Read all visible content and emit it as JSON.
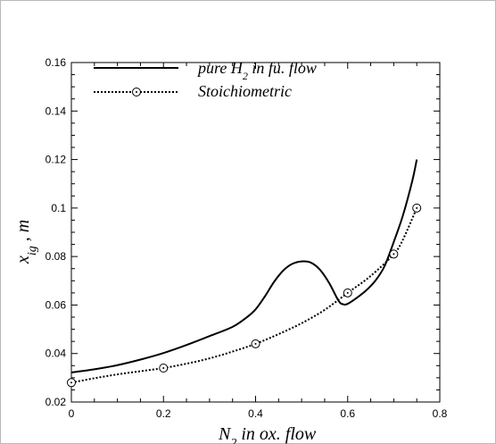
{
  "chart_data": {
    "type": "line",
    "xlabel": "N",
    "xlabel_sub": "2",
    "xlabel_rest": " in ox. flow",
    "ylabel": "x",
    "ylabel_sub": "ig",
    "ylabel_rest": " , m",
    "xlim": [
      0,
      0.8
    ],
    "ylim": [
      0.02,
      0.16
    ],
    "xticks": [
      "0",
      "0.2",
      "0.4",
      "0.6",
      "0.8"
    ],
    "yticks": [
      "0.02",
      "0.04",
      "0.06",
      "0.08",
      "0.1",
      "0.12",
      "0.14",
      "0.16"
    ],
    "legend_position": "top-left",
    "series": [
      {
        "name": "pure H",
        "name_sub": "2",
        "name_rest": " in fu. flow",
        "style": "solid",
        "color": "#000000",
        "x": [
          0,
          0.05,
          0.1,
          0.15,
          0.2,
          0.25,
          0.3,
          0.35,
          0.38,
          0.4,
          0.42,
          0.44,
          0.46,
          0.48,
          0.5,
          0.52,
          0.54,
          0.56,
          0.58,
          0.59,
          0.6,
          0.62,
          0.64,
          0.66,
          0.68,
          0.7,
          0.72,
          0.74,
          0.75
        ],
        "y": [
          0.0322,
          0.0335,
          0.0352,
          0.0375,
          0.0402,
          0.0435,
          0.0472,
          0.051,
          0.0548,
          0.0582,
          0.0635,
          0.0695,
          0.0742,
          0.077,
          0.078,
          0.0775,
          0.0745,
          0.069,
          0.0618,
          0.0603,
          0.0605,
          0.063,
          0.066,
          0.07,
          0.076,
          0.086,
          0.097,
          0.111,
          0.12
        ]
      },
      {
        "name": "Stoichiometric",
        "style": "dotted",
        "color": "#000000",
        "x": [
          0,
          0.05,
          0.1,
          0.15,
          0.2,
          0.25,
          0.3,
          0.35,
          0.4,
          0.45,
          0.5,
          0.55,
          0.6,
          0.65,
          0.7,
          0.72,
          0.75
        ],
        "y": [
          0.028,
          0.0298,
          0.0314,
          0.0327,
          0.034,
          0.0358,
          0.038,
          0.0408,
          0.044,
          0.048,
          0.0525,
          0.058,
          0.065,
          0.072,
          0.081,
          0.087,
          0.1
        ],
        "markers_x": [
          0,
          0.2,
          0.4,
          0.6,
          0.7,
          0.75
        ],
        "markers_y": [
          0.028,
          0.034,
          0.044,
          0.065,
          0.081,
          0.1
        ]
      }
    ]
  }
}
